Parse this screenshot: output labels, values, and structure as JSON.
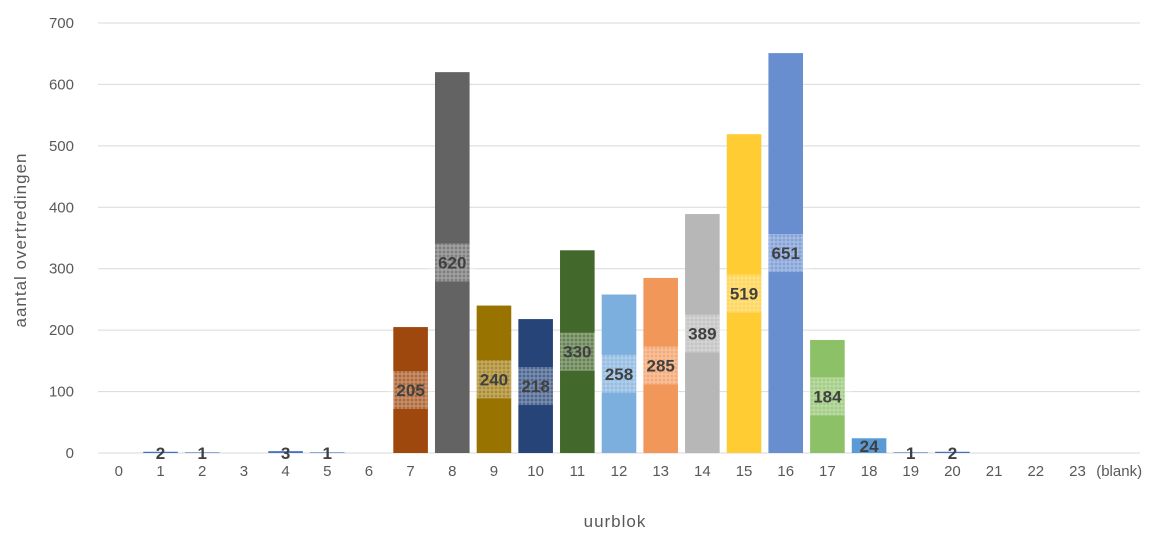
{
  "chart_data": {
    "type": "bar",
    "title": "",
    "xlabel": "uurblok",
    "ylabel": "aantal overtredingen",
    "ylim": [
      0,
      700
    ],
    "yticks": [
      0,
      100,
      200,
      300,
      400,
      500,
      600,
      700
    ],
    "grid": true,
    "legend": "none",
    "categories": [
      "0",
      "1",
      "2",
      "3",
      "4",
      "5",
      "6",
      "7",
      "8",
      "9",
      "10",
      "11",
      "12",
      "13",
      "14",
      "15",
      "16",
      "17",
      "18",
      "19",
      "20",
      "21",
      "22",
      "23",
      "(blank)"
    ],
    "values": [
      0,
      2,
      1,
      0,
      3,
      1,
      0,
      205,
      620,
      240,
      218,
      330,
      258,
      285,
      389,
      519,
      651,
      184,
      24,
      1,
      2,
      0,
      0,
      0,
      0
    ],
    "data_labels": [
      "",
      "2",
      "1",
      "",
      "3",
      "1",
      "",
      "205",
      "620",
      "240",
      "218",
      "330",
      "258",
      "285",
      "389",
      "519",
      "651",
      "184",
      "24",
      "1",
      "2",
      "",
      "",
      "",
      ""
    ],
    "colors": [
      "#4472c4",
      "#4472c4",
      "#4472c4",
      "#4472c4",
      "#4472c4",
      "#4472c4",
      "#4472c4",
      "#9e480e",
      "#636363",
      "#997300",
      "#264478",
      "#43682b",
      "#7cafdd",
      "#f1975a",
      "#b7b7b7",
      "#ffcd33",
      "#698ed0",
      "#8cc168",
      "#5b9bd5",
      "#4472c4",
      "#4472c4",
      "#4472c4",
      "#4472c4",
      "#4472c4",
      "#4472c4"
    ]
  }
}
